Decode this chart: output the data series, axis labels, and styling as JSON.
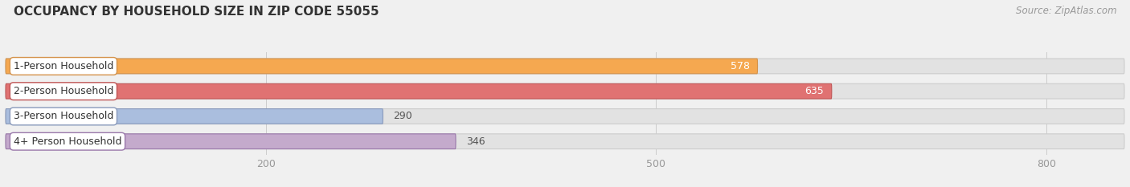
{
  "title": "OCCUPANCY BY HOUSEHOLD SIZE IN ZIP CODE 55055",
  "source": "Source: ZipAtlas.com",
  "categories": [
    "1-Person Household",
    "2-Person Household",
    "3-Person Household",
    "4+ Person Household"
  ],
  "values": [
    578,
    635,
    290,
    346
  ],
  "bar_colors": [
    "#F5A850",
    "#E07272",
    "#AABEDE",
    "#C4AACC"
  ],
  "bar_edge_colors": [
    "#D4924A",
    "#C05555",
    "#8899BB",
    "#9977AA"
  ],
  "background_color": "#f0f0f0",
  "bar_bg_color": "#e2e2e2",
  "bar_bg_edge_color": "#cccccc",
  "xlim_max": 860,
  "xticks": [
    200,
    500,
    800
  ],
  "title_fontsize": 11,
  "source_fontsize": 8.5,
  "tick_fontsize": 9,
  "label_fontsize": 9,
  "value_fontsize": 9,
  "figsize": [
    14.06,
    2.33
  ],
  "dpi": 100
}
